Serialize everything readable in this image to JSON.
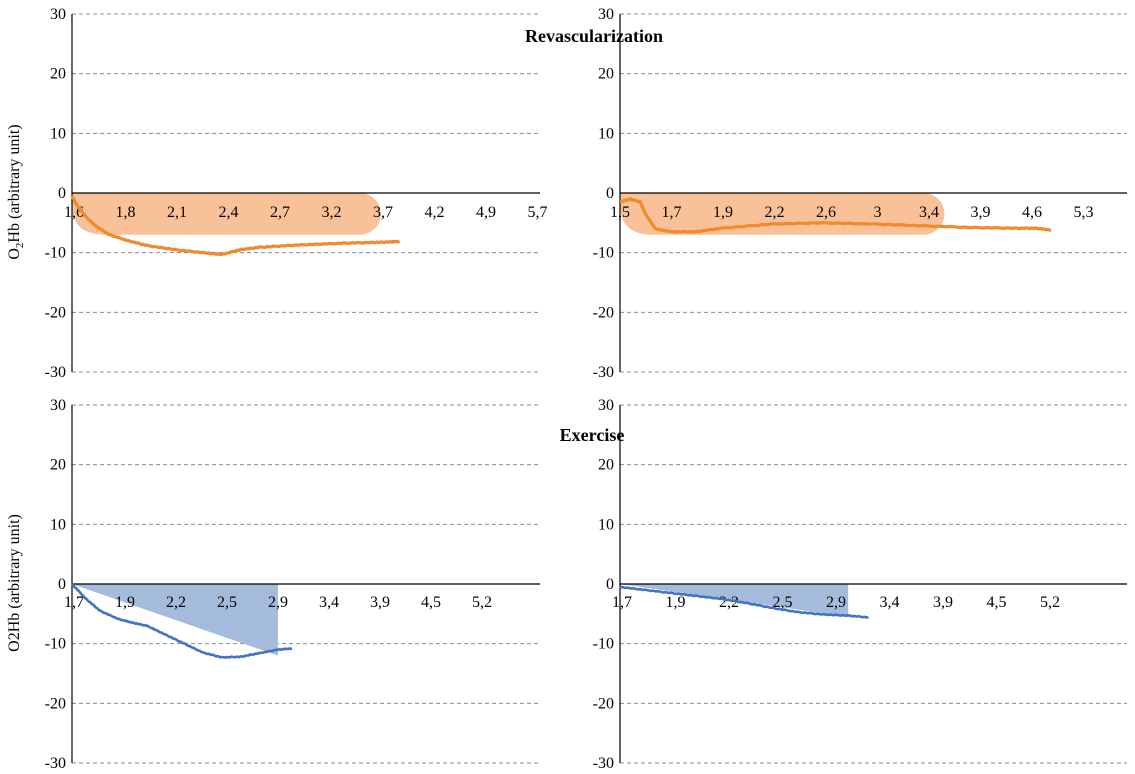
{
  "figure": {
    "section_titles": [
      "Revascularization",
      "Exercise"
    ],
    "y_axis_labels": [
      "O2Hb (arbitrary unit)",
      "O2Hb (arbitrary unit)"
    ]
  },
  "colors": {
    "orange_line": "#f08a2c",
    "orange_fill": "#f9c197",
    "blue_line": "#4472c4",
    "blue_fill": "#a4bbdc",
    "grid": "#8c8c8c",
    "axis": "#000000"
  },
  "chart_data": [
    {
      "id": "revasc-left",
      "type": "line",
      "title": "Revascularization",
      "ylabel": "O2Hb (arbitrary unit)",
      "ylabel_subscript": "2",
      "ylim": [
        -30,
        30
      ],
      "yticks": [
        30,
        20,
        10,
        0,
        -10,
        -20,
        -30
      ],
      "xticks": [
        "1,6",
        "1,8",
        "2,1",
        "2,4",
        "2,7",
        "3,2",
        "3,7",
        "4,2",
        "4,9",
        "5,7"
      ],
      "grid": true,
      "highlight": {
        "shape": "rounded",
        "x_range": [
          0,
          0.66
        ],
        "y_range": [
          -7,
          0
        ]
      },
      "series": [
        {
          "color": "orange",
          "x": [
            0,
            0.01,
            0.03,
            0.05,
            0.08,
            0.12,
            0.16,
            0.22,
            0.28,
            0.32,
            0.36,
            0.4,
            0.46,
            0.52,
            0.58,
            0.64,
            0.68,
            0.7
          ],
          "y": [
            -0.5,
            -2,
            -4,
            -5.5,
            -7,
            -8,
            -8.8,
            -9.5,
            -10,
            -10.3,
            -9.5,
            -9.1,
            -8.8,
            -8.6,
            -8.4,
            -8.3,
            -8.2,
            -8.1
          ]
        }
      ]
    },
    {
      "id": "revasc-right",
      "type": "line",
      "ylim": [
        -30,
        30
      ],
      "yticks": [
        30,
        20,
        10,
        0,
        -10,
        -20,
        -30
      ],
      "xticks": [
        "1,5",
        "1,7",
        "1,9",
        "2,2",
        "2,6",
        "3",
        "3,4",
        "3,9",
        "4,6",
        "5,3"
      ],
      "grid": true,
      "highlight": {
        "shape": "rounded",
        "x_range": [
          0,
          0.64
        ],
        "y_range": [
          -7,
          0
        ]
      },
      "series": [
        {
          "color": "orange",
          "x": [
            0,
            0.02,
            0.04,
            0.05,
            0.07,
            0.1,
            0.15,
            0.2,
            0.3,
            0.4,
            0.5,
            0.6,
            0.7,
            0.78,
            0.82,
            0.85
          ],
          "y": [
            -1.5,
            -1,
            -1.5,
            -3.5,
            -6,
            -6.5,
            -6.5,
            -5.9,
            -5.2,
            -5.0,
            -5.2,
            -5.5,
            -5.8,
            -5.9,
            -5.9,
            -6.2
          ]
        }
      ]
    },
    {
      "id": "exercise-left",
      "type": "line",
      "title": "Exercise",
      "ylabel": "O2Hb (arbitrary unit)",
      "ylim": [
        -30,
        30
      ],
      "yticks": [
        30,
        20,
        10,
        0,
        -10,
        -20,
        -30
      ],
      "xticks": [
        "1,7",
        "1,9",
        "2,2",
        "2,5",
        "2,9",
        "3,4",
        "3,9",
        "4,5",
        "5,2"
      ],
      "grid": true,
      "highlight": {
        "shape": "triangle",
        "x_range": [
          0,
          0.44
        ],
        "y_range": [
          -12,
          0
        ]
      },
      "series": [
        {
          "color": "blue",
          "x": [
            0,
            0.03,
            0.06,
            0.1,
            0.13,
            0.16,
            0.2,
            0.24,
            0.28,
            0.32,
            0.36,
            0.4,
            0.44,
            0.47
          ],
          "y": [
            0,
            -2.5,
            -4.5,
            -5.9,
            -6.5,
            -7,
            -8.5,
            -10,
            -11.5,
            -12.3,
            -12.2,
            -11.6,
            -11,
            -10.8
          ]
        }
      ]
    },
    {
      "id": "exercise-right",
      "type": "line",
      "ylim": [
        -30,
        30
      ],
      "yticks": [
        30,
        20,
        10,
        0,
        -10,
        -20,
        -30
      ],
      "xticks": [
        "1,7",
        "1,9",
        "2,2",
        "2,5",
        "2,9",
        "3,4",
        "3,9",
        "4,5",
        "5,2"
      ],
      "grid": true,
      "highlight": {
        "shape": "triangle",
        "x_range": [
          0,
          0.45
        ],
        "y_range": [
          -5.5,
          0
        ]
      },
      "series": [
        {
          "color": "blue",
          "x": [
            0,
            0.05,
            0.1,
            0.15,
            0.2,
            0.25,
            0.3,
            0.35,
            0.4,
            0.45,
            0.49
          ],
          "y": [
            -0.5,
            -1,
            -1.5,
            -2.0,
            -2.5,
            -3.2,
            -4.0,
            -4.7,
            -5.1,
            -5.3,
            -5.6
          ]
        }
      ]
    }
  ]
}
